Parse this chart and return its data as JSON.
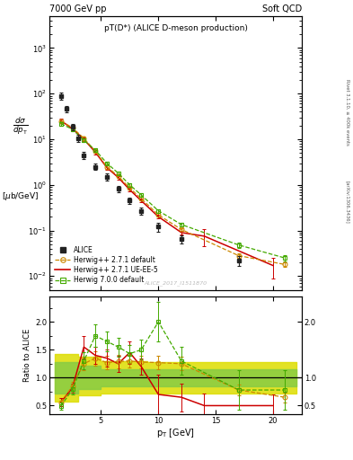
{
  "title_top": "7000 GeV pp",
  "title_right": "Soft QCD",
  "plot_title": "pT(D*) (ALICE D-meson production)",
  "watermark": "ALICE_2017_I1511870",
  "right_label": "Rivet 3.1.10, ≥ 400k events",
  "right_label2": "[arXiv:1306.3436]",
  "xlabel": "p$_\\mathrm{T}$ [GeV]",
  "ylabel": "dσ/dp$_\\mathrm{T}$ [μb/GeV]",
  "ylabel_ratio": "Ratio to ALICE",
  "alice_x": [
    1.5,
    2.0,
    2.5,
    3.0,
    3.5,
    4.5,
    5.5,
    6.5,
    7.5,
    8.5,
    10.0,
    12.0,
    17.0
  ],
  "alice_y": [
    90.0,
    46.0,
    19.0,
    10.5,
    4.5,
    2.5,
    1.5,
    0.82,
    0.45,
    0.27,
    0.12,
    0.065,
    0.022
  ],
  "alice_yerr": [
    15.0,
    7.0,
    3.0,
    1.8,
    0.8,
    0.4,
    0.25,
    0.14,
    0.07,
    0.05,
    0.025,
    0.013,
    0.005
  ],
  "hpp271_x": [
    1.5,
    2.5,
    3.5,
    4.5,
    5.5,
    6.5,
    7.5,
    8.5,
    10.0,
    12.0,
    17.0,
    21.0
  ],
  "hpp271_y": [
    25.0,
    18.0,
    10.5,
    5.5,
    2.5,
    1.55,
    0.85,
    0.5,
    0.22,
    0.105,
    0.028,
    0.018
  ],
  "hpp271_yerr": [
    2.0,
    1.5,
    0.9,
    0.5,
    0.22,
    0.13,
    0.07,
    0.04,
    0.018,
    0.009,
    0.003,
    0.002
  ],
  "hpp271ue_x": [
    1.5,
    2.5,
    3.5,
    4.5,
    5.5,
    6.5,
    7.5,
    8.5,
    10.0,
    12.0,
    14.0,
    20.0
  ],
  "hpp271ue_y": [
    25.5,
    17.0,
    10.0,
    5.2,
    2.4,
    1.45,
    0.78,
    0.45,
    0.2,
    0.09,
    0.075,
    0.017
  ],
  "hpp271ue_yerr": [
    2.5,
    1.5,
    0.9,
    0.5,
    0.22,
    0.13,
    0.07,
    0.04,
    0.018,
    0.009,
    0.03,
    0.008
  ],
  "h700_x": [
    1.5,
    2.5,
    3.5,
    4.5,
    5.5,
    6.5,
    7.5,
    8.5,
    10.0,
    12.0,
    17.0,
    21.0
  ],
  "h700_y": [
    22.0,
    16.5,
    9.5,
    5.8,
    3.0,
    1.8,
    1.0,
    0.6,
    0.27,
    0.135,
    0.048,
    0.025
  ],
  "h700_yerr": [
    2.5,
    1.5,
    0.9,
    0.5,
    0.22,
    0.15,
    0.09,
    0.05,
    0.025,
    0.012,
    0.006,
    0.004
  ],
  "ratio_hpp271_x": [
    1.5,
    2.5,
    3.5,
    4.5,
    5.5,
    6.5,
    7.5,
    8.5,
    10.0,
    12.0,
    17.0,
    21.0
  ],
  "ratio_hpp271_y": [
    0.56,
    0.85,
    1.25,
    1.35,
    1.27,
    1.29,
    1.3,
    1.28,
    1.27,
    1.25,
    0.78,
    0.65
  ],
  "ratio_hpp271_yerr": [
    0.07,
    0.08,
    0.12,
    0.13,
    0.12,
    0.12,
    0.11,
    0.12,
    0.12,
    0.12,
    0.1,
    0.09
  ],
  "ratio_hpp271ue_x": [
    1.5,
    2.5,
    3.5,
    4.5,
    5.5,
    6.5,
    7.5,
    8.5,
    10.0,
    12.0,
    14.0,
    20.0
  ],
  "ratio_hpp271ue_y": [
    0.56,
    0.82,
    1.55,
    1.4,
    1.35,
    1.25,
    1.45,
    1.2,
    0.7,
    0.65,
    0.5,
    0.5
  ],
  "ratio_hpp271ue_yerr": [
    0.07,
    0.08,
    0.2,
    0.15,
    0.15,
    0.15,
    0.2,
    0.15,
    0.35,
    0.25,
    0.22,
    0.2
  ],
  "ratio_h700_x": [
    1.5,
    2.5,
    3.5,
    4.5,
    5.5,
    6.5,
    7.5,
    8.5,
    10.0,
    12.0,
    17.0,
    21.0
  ],
  "ratio_h700_y": [
    0.49,
    0.79,
    1.3,
    1.75,
    1.65,
    1.55,
    1.43,
    1.5,
    2.0,
    1.3,
    0.78,
    0.78
  ],
  "ratio_h700_yerr": [
    0.07,
    0.09,
    0.15,
    0.2,
    0.18,
    0.17,
    0.16,
    0.18,
    0.35,
    0.25,
    0.35,
    0.35
  ],
  "band_yellow_x": [
    1.0,
    3.0,
    5.0,
    9.0,
    22.0
  ],
  "band_yellow_lo": [
    0.58,
    0.68,
    0.72,
    0.72,
    0.72
  ],
  "band_yellow_hi": [
    1.42,
    1.38,
    1.3,
    1.28,
    1.28
  ],
  "band_green_x": [
    1.0,
    3.0,
    5.0,
    9.0,
    22.0
  ],
  "band_green_lo": [
    0.72,
    0.8,
    0.85,
    0.85,
    0.85
  ],
  "band_green_hi": [
    1.28,
    1.22,
    1.15,
    1.15,
    1.15
  ],
  "color_alice": "#222222",
  "color_hpp271": "#cc8800",
  "color_hpp271ue": "#cc0000",
  "color_h700": "#44aa00",
  "color_yellow_band": "#dddd00",
  "color_green_band": "#88cc44",
  "ylim_main": [
    0.005,
    5000
  ],
  "ylim_ratio": [
    0.35,
    2.45
  ],
  "xlim": [
    0.5,
    22.5
  ]
}
